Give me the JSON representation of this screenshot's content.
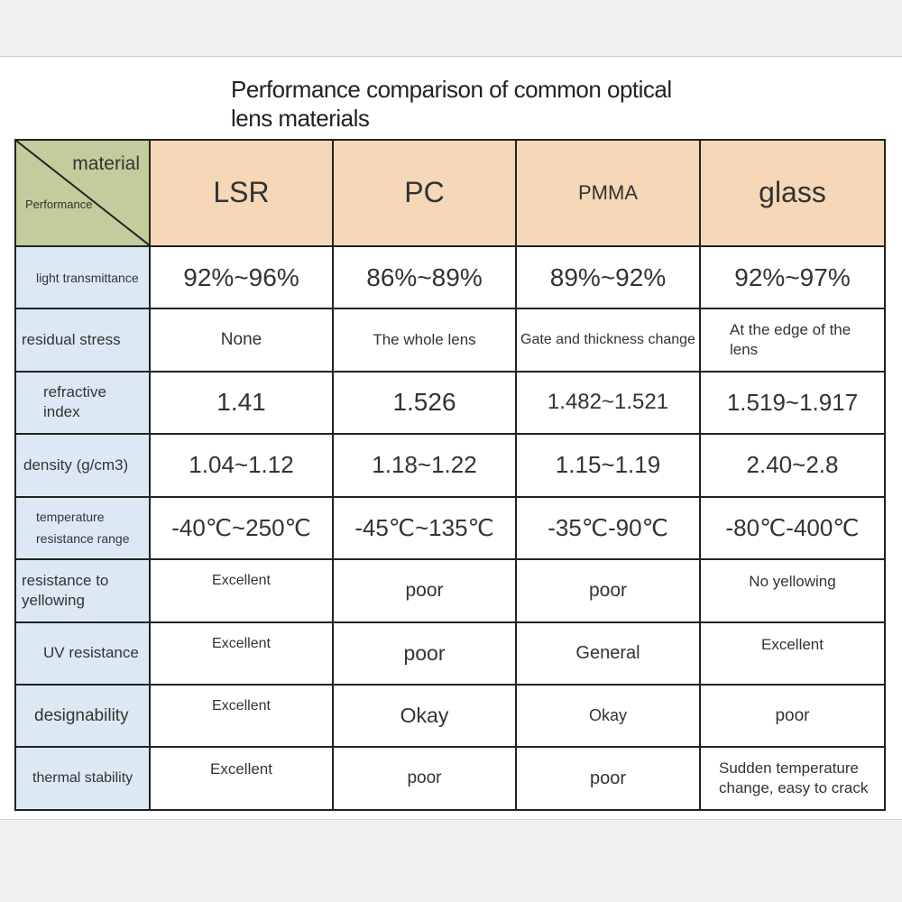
{
  "title": "Performance comparison of common optical lens materials",
  "corner": {
    "top": "material",
    "bottom": "Performance"
  },
  "materials": [
    "LSR",
    "PC",
    "PMMA",
    "glass"
  ],
  "rows": [
    {
      "property": "light transmittance",
      "values": [
        "92%~96%",
        "86%~89%",
        "89%~92%",
        "92%~97%"
      ]
    },
    {
      "property": "residual stress",
      "values": [
        "None",
        "The whole lens",
        "Gate and thickness change",
        "At the edge of the lens"
      ]
    },
    {
      "property": "refractive index",
      "values": [
        "1.41",
        "1.526",
        "1.482~1.521",
        "1.519~1.917"
      ]
    },
    {
      "property": "density (g/cm3)",
      "values": [
        "1.04~1.12",
        "1.18~1.22",
        "1.15~1.19",
        "2.40~2.8"
      ]
    },
    {
      "property": "temperature resistance range",
      "values": [
        "-40℃~250℃",
        "-45℃~135℃",
        "-35℃-90℃",
        "-80℃-400℃"
      ]
    },
    {
      "property": "resistance to yellowing",
      "values": [
        "Excellent",
        "poor",
        "poor",
        "No yellowing"
      ]
    },
    {
      "property": "UV resistance",
      "values": [
        "Excellent",
        "poor",
        "General",
        "Excellent"
      ]
    },
    {
      "property": "designability",
      "values": [
        "Excellent",
        "Okay",
        "Okay",
        "poor"
      ]
    },
    {
      "property": "thermal stability",
      "values": [
        "Excellent",
        "poor",
        "poor",
        "Sudden temperature change, easy to crack"
      ]
    }
  ]
}
